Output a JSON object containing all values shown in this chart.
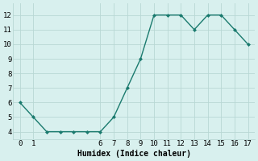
{
  "x": [
    0,
    1,
    2,
    3,
    4,
    5,
    6,
    7,
    8,
    9,
    10,
    11,
    12,
    13,
    14,
    15,
    16,
    17
  ],
  "y": [
    6,
    5,
    4,
    4,
    4,
    4,
    4,
    5,
    7,
    9,
    12,
    12,
    12,
    11,
    12,
    12,
    11,
    10
  ],
  "line_color": "#1a7a6e",
  "marker": "D",
  "marker_size": 2.0,
  "bg_color": "#d8f0ee",
  "grid_color": "#b8d8d4",
  "xlabel": "Humidex (Indice chaleur)",
  "xlabel_fontsize": 7,
  "xticks": [
    0,
    1,
    6,
    7,
    8,
    9,
    10,
    11,
    12,
    13,
    14,
    15,
    16,
    17
  ],
  "yticks": [
    4,
    5,
    6,
    7,
    8,
    9,
    10,
    11,
    12
  ],
  "xlim": [
    -0.5,
    17.5
  ],
  "ylim": [
    3.5,
    12.8
  ],
  "tick_fontsize": 6.5,
  "linewidth": 1.0
}
